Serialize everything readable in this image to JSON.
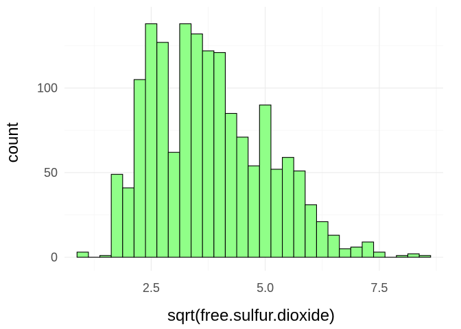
{
  "chart_data": {
    "type": "bar",
    "title": "",
    "xlabel": "sqrt(free.sulfur.dioxide)",
    "ylabel": "count",
    "xlim": [
      0.6,
      8.9
    ],
    "ylim": [
      -8,
      148
    ],
    "x_ticks": [
      2.5,
      5.0,
      7.5
    ],
    "x_tick_labels": [
      "2.5",
      "5.0",
      "7.5"
    ],
    "y_ticks": [
      0,
      50,
      100
    ],
    "y_tick_labels": [
      "0",
      "50",
      "100"
    ],
    "grid": true,
    "legend": "none",
    "bin_width": 0.25,
    "bins": [
      {
        "x": 1.0,
        "count": 3
      },
      {
        "x": 1.25,
        "count": 0
      },
      {
        "x": 1.5,
        "count": 1
      },
      {
        "x": 1.75,
        "count": 49
      },
      {
        "x": 2.0,
        "count": 41
      },
      {
        "x": 2.25,
        "count": 105
      },
      {
        "x": 2.5,
        "count": 138
      },
      {
        "x": 2.75,
        "count": 127
      },
      {
        "x": 3.0,
        "count": 62
      },
      {
        "x": 3.25,
        "count": 138
      },
      {
        "x": 3.5,
        "count": 132
      },
      {
        "x": 3.75,
        "count": 122
      },
      {
        "x": 4.0,
        "count": 121
      },
      {
        "x": 4.25,
        "count": 85
      },
      {
        "x": 4.5,
        "count": 71
      },
      {
        "x": 4.75,
        "count": 54
      },
      {
        "x": 5.0,
        "count": 90
      },
      {
        "x": 5.25,
        "count": 52
      },
      {
        "x": 5.5,
        "count": 59
      },
      {
        "x": 5.75,
        "count": 51
      },
      {
        "x": 6.0,
        "count": 31
      },
      {
        "x": 6.25,
        "count": 21
      },
      {
        "x": 6.5,
        "count": 13
      },
      {
        "x": 6.75,
        "count": 5
      },
      {
        "x": 7.0,
        "count": 6
      },
      {
        "x": 7.25,
        "count": 9
      },
      {
        "x": 7.5,
        "count": 3
      },
      {
        "x": 7.75,
        "count": 0
      },
      {
        "x": 8.0,
        "count": 1
      },
      {
        "x": 8.25,
        "count": 2
      },
      {
        "x": 8.5,
        "count": 1
      }
    ],
    "colors": {
      "bar_fill": "#90ff88",
      "bar_stroke": "#000000",
      "grid_major": "#ebebeb",
      "grid_minor": "#f5f5f5"
    }
  }
}
